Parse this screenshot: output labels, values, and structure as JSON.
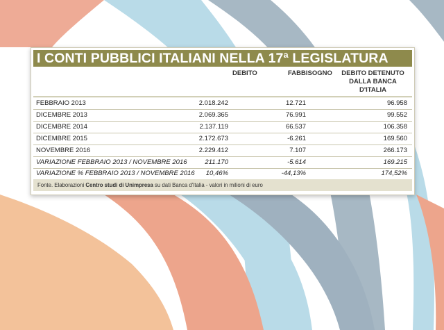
{
  "colors": {
    "title_bg": "#8e8a4c",
    "footer_bg": "#e4e1cf"
  },
  "table": {
    "title": "I CONTI PUBBLICI ITALIANI NELLA 17ª LEGISLATURA",
    "headers": {
      "debito": "DEBITO",
      "fabbisogno": "FABBISOGNO",
      "detenuto_lines": [
        "DEBITO DETENUTO",
        "DALLA BANCA",
        "D'ITALIA"
      ]
    },
    "rows": [
      {
        "label": "FEBBRAIO 2013",
        "debito": "2.018.242",
        "fabbisogno": "12.721",
        "detenuto": "96.958"
      },
      {
        "label": "DICEMBRE 2013",
        "debito": "2.069.365",
        "fabbisogno": "76.991",
        "detenuto": "99.552"
      },
      {
        "label": "DICEMBRE 2014",
        "debito": "2.137.119",
        "fabbisogno": "66.537",
        "detenuto": "106.358"
      },
      {
        "label": "DICEMBRE 2015",
        "debito": "2.172.673",
        "fabbisogno": "-6.261",
        "detenuto": "169.560"
      },
      {
        "label": "NOVEMBRE 2016",
        "debito": "2.229.412",
        "fabbisogno": "7.107",
        "detenuto": "266.173"
      },
      {
        "label": "VARIAZIONE FEBBRAIO 2013 / NOVEMBRE 2016",
        "debito": "211.170",
        "fabbisogno": "-5.614",
        "detenuto": "169.215"
      },
      {
        "label": "VARIAZIONE % FEBBRAIO 2013 / NOVEMBRE 2016",
        "debito": "10,46%",
        "fabbisogno": "-44,13%",
        "detenuto": "174,52%"
      }
    ],
    "footer": {
      "prefix": "Fonte. Elaborazioni ",
      "source": "Centro studi di Unimpresa",
      "suffix": " su dati Banca d'Italia - valori in milioni di euro"
    }
  }
}
